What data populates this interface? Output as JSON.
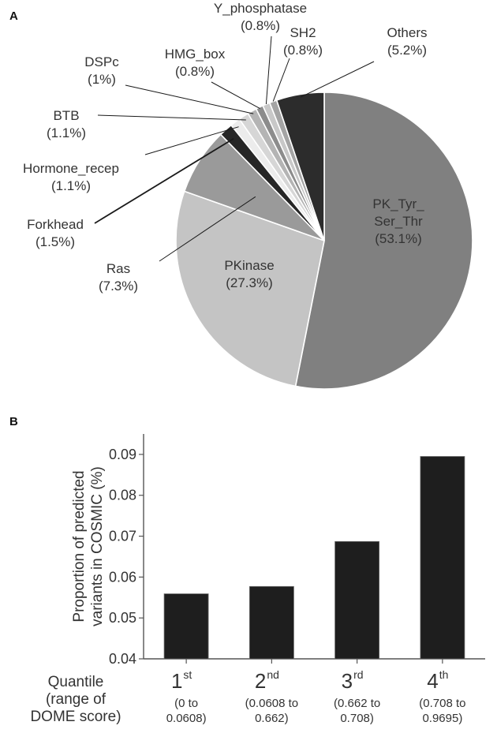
{
  "panels": {
    "a": "A",
    "b": "B"
  },
  "chart_data": [
    {
      "type": "pie",
      "start_at": "top",
      "direction": "clockwise",
      "slices": [
        {
          "name": "PK_Tyr_\nSer_Thr",
          "pct_label": "(53.1%)",
          "value": 53.1,
          "color": "#808080"
        },
        {
          "name": "PKinase",
          "pct_label": "(27.3%)",
          "value": 27.3,
          "color": "#c4c4c4"
        },
        {
          "name": "Ras",
          "pct_label": "(7.3%)",
          "value": 7.3,
          "color": "#9a9a9a"
        },
        {
          "name": "Forkhead",
          "pct_label": "(1.5%)",
          "value": 1.5,
          "color": "#262626"
        },
        {
          "name": "Hormone_recep",
          "pct_label": "(1.1%)",
          "value": 1.1,
          "color": "#ececec"
        },
        {
          "name": "BTB",
          "pct_label": "(1.1%)",
          "value": 1.1,
          "color": "#d6d6d6"
        },
        {
          "name": "DSPc",
          "pct_label": "(1%)",
          "value": 1.0,
          "color": "#b4b4b4"
        },
        {
          "name": "HMG_box",
          "pct_label": "(0.8%)",
          "value": 0.8,
          "color": "#8c8c8c"
        },
        {
          "name": "Y_phosphatase",
          "pct_label": "(0.8%)",
          "value": 0.8,
          "color": "#c8c8c8"
        },
        {
          "name": "SH2",
          "pct_label": "(0.8%)",
          "value": 0.8,
          "color": "#a4a4a4"
        },
        {
          "name": "Others",
          "pct_label": "(5.2%)",
          "value": 5.2,
          "color": "#2c2c2c"
        }
      ]
    },
    {
      "type": "bar",
      "ylabel": "Proportion of predicted\nvariants in COSMIC (%)",
      "ylim": [
        0.04,
        0.095
      ],
      "yticks": [
        "0.04",
        "0.05",
        "0.06",
        "0.07",
        "0.08",
        "0.09"
      ],
      "xhead": "Quantile\n(range of\nDOME score)",
      "bar_color": "#1e1e1e",
      "categories": [
        {
          "num": "1",
          "sup": "st",
          "range": "(0 to\n0.0608)"
        },
        {
          "num": "2",
          "sup": "nd",
          "range": "(0.0608 to\n0.662)"
        },
        {
          "num": "3",
          "sup": "rd",
          "range": "(0.662 to\n0.708)"
        },
        {
          "num": "4",
          "sup": "th",
          "range": "(0.708 to\n0.9695)"
        }
      ],
      "values": [
        0.0559,
        0.0577,
        0.0687,
        0.0895
      ]
    }
  ]
}
